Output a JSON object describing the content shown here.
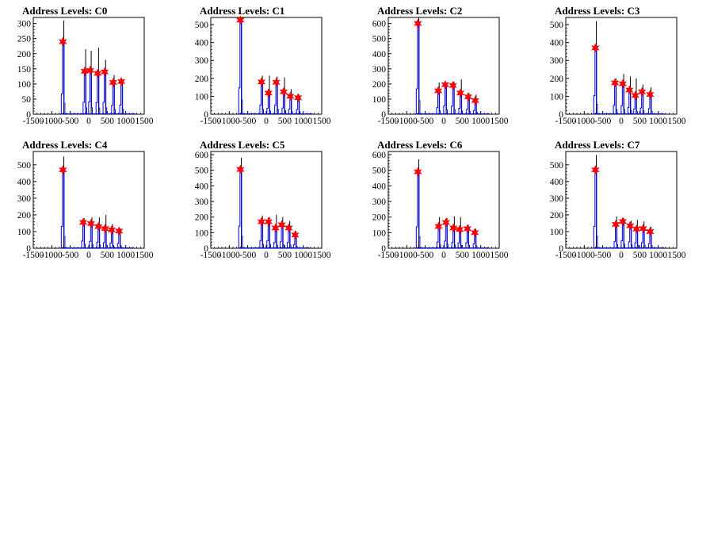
{
  "figure": {
    "background": "#ffffff",
    "line_color": "#0000ff",
    "outline_color": "#000000",
    "marker_color": "#ff0000"
  },
  "chart_data": [
    {
      "type": "histogram",
      "title": "Address Levels: C0",
      "xlim": [
        -1500,
        1500
      ],
      "ylim": [
        0,
        320
      ],
      "xticks": [
        -1500,
        -1000,
        -500,
        0,
        500,
        1000,
        1500
      ],
      "yticks": [
        0,
        50,
        100,
        150,
        200,
        250,
        300
      ],
      "peaks": [
        {
          "x": -700,
          "y": 240,
          "max": 310
        },
        {
          "x": -110,
          "y": 142,
          "max": 215
        },
        {
          "x": 40,
          "y": 145,
          "max": 210
        },
        {
          "x": 240,
          "y": 135,
          "max": 220
        },
        {
          "x": 430,
          "y": 140,
          "max": 180
        },
        {
          "x": 660,
          "y": 105,
          "max": 130
        },
        {
          "x": 880,
          "y": 108,
          "max": 115
        }
      ]
    },
    {
      "type": "histogram",
      "title": "Address Levels: C1",
      "xlim": [
        -1500,
        1500
      ],
      "ylim": [
        0,
        540
      ],
      "xticks": [
        -1500,
        -1000,
        -500,
        0,
        500,
        1000,
        1500
      ],
      "yticks": [
        0,
        100,
        200,
        300,
        400,
        500
      ],
      "peaks": [
        {
          "x": -700,
          "y": 525,
          "max": 540
        },
        {
          "x": -130,
          "y": 180,
          "max": 215
        },
        {
          "x": 60,
          "y": 118,
          "max": 215
        },
        {
          "x": 270,
          "y": 178,
          "max": 210
        },
        {
          "x": 470,
          "y": 125,
          "max": 205
        },
        {
          "x": 650,
          "y": 100,
          "max": 140
        },
        {
          "x": 860,
          "y": 92,
          "max": 110
        }
      ]
    },
    {
      "type": "histogram",
      "title": "Address Levels: C2",
      "xlim": [
        -1500,
        1500
      ],
      "ylim": [
        0,
        640
      ],
      "xticks": [
        -1500,
        -1000,
        -500,
        0,
        500,
        1000,
        1500
      ],
      "yticks": [
        0,
        100,
        200,
        300,
        400,
        500,
        600
      ],
      "peaks": [
        {
          "x": -700,
          "y": 600,
          "max": 640
        },
        {
          "x": -150,
          "y": 155,
          "max": 210
        },
        {
          "x": 40,
          "y": 195,
          "max": 205
        },
        {
          "x": 250,
          "y": 190,
          "max": 215
        },
        {
          "x": 450,
          "y": 140,
          "max": 230
        },
        {
          "x": 660,
          "y": 115,
          "max": 140
        },
        {
          "x": 850,
          "y": 90,
          "max": 130
        }
      ]
    },
    {
      "type": "histogram",
      "title": "Address Levels: C3",
      "xlim": [
        -1500,
        1500
      ],
      "ylim": [
        0,
        540
      ],
      "xticks": [
        -1500,
        -1000,
        -500,
        0,
        500,
        1000,
        1500
      ],
      "yticks": [
        0,
        100,
        200,
        300,
        400,
        500
      ],
      "peaks": [
        {
          "x": -700,
          "y": 370,
          "max": 520
        },
        {
          "x": -170,
          "y": 175,
          "max": 200
        },
        {
          "x": 40,
          "y": 170,
          "max": 225
        },
        {
          "x": 220,
          "y": 135,
          "max": 210
        },
        {
          "x": 380,
          "y": 105,
          "max": 200
        },
        {
          "x": 560,
          "y": 125,
          "max": 165
        },
        {
          "x": 780,
          "y": 110,
          "max": 150
        }
      ]
    },
    {
      "type": "histogram",
      "title": "Address Levels: C4",
      "xlim": [
        -1500,
        1500
      ],
      "ylim": [
        0,
        580
      ],
      "xticks": [
        -1500,
        -1000,
        -500,
        0,
        500,
        1000,
        1500
      ],
      "yticks": [
        0,
        100,
        200,
        300,
        400,
        500
      ],
      "peaks": [
        {
          "x": -700,
          "y": 470,
          "max": 550
        },
        {
          "x": -150,
          "y": 155,
          "max": 180
        },
        {
          "x": 60,
          "y": 148,
          "max": 185
        },
        {
          "x": 260,
          "y": 130,
          "max": 185
        },
        {
          "x": 440,
          "y": 118,
          "max": 200
        },
        {
          "x": 620,
          "y": 110,
          "max": 145
        },
        {
          "x": 820,
          "y": 103,
          "max": 120
        }
      ]
    },
    {
      "type": "histogram",
      "title": "Address Levels: C5",
      "xlim": [
        -1500,
        1500
      ],
      "ylim": [
        0,
        620
      ],
      "xticks": [
        -1500,
        -1000,
        -500,
        0,
        500,
        1000,
        1500
      ],
      "yticks": [
        0,
        100,
        200,
        300,
        400,
        500,
        600
      ],
      "peaks": [
        {
          "x": -700,
          "y": 505,
          "max": 580
        },
        {
          "x": -130,
          "y": 170,
          "max": 210
        },
        {
          "x": 60,
          "y": 170,
          "max": 200
        },
        {
          "x": 250,
          "y": 130,
          "max": 215
        },
        {
          "x": 420,
          "y": 150,
          "max": 200
        },
        {
          "x": 610,
          "y": 130,
          "max": 175
        },
        {
          "x": 780,
          "y": 85,
          "max": 110
        }
      ]
    },
    {
      "type": "histogram",
      "title": "Address Levels: C6",
      "xlim": [
        -1500,
        1500
      ],
      "ylim": [
        0,
        620
      ],
      "xticks": [
        -1500,
        -1000,
        -500,
        0,
        500,
        1000,
        1500
      ],
      "yticks": [
        0,
        100,
        200,
        300,
        400,
        500,
        600
      ],
      "peaks": [
        {
          "x": -700,
          "y": 490,
          "max": 570
        },
        {
          "x": -140,
          "y": 140,
          "max": 200
        },
        {
          "x": 60,
          "y": 165,
          "max": 195
        },
        {
          "x": 260,
          "y": 130,
          "max": 205
        },
        {
          "x": 430,
          "y": 120,
          "max": 200
        },
        {
          "x": 640,
          "y": 125,
          "max": 150
        },
        {
          "x": 840,
          "y": 100,
          "max": 125
        }
      ]
    },
    {
      "type": "histogram",
      "title": "Address Levels: C7",
      "xlim": [
        -1500,
        1500
      ],
      "ylim": [
        0,
        580
      ],
      "xticks": [
        -1500,
        -1000,
        -500,
        0,
        500,
        1000,
        1500
      ],
      "yticks": [
        0,
        100,
        200,
        300,
        400,
        500
      ],
      "peaks": [
        {
          "x": -700,
          "y": 470,
          "max": 560
        },
        {
          "x": -150,
          "y": 143,
          "max": 190
        },
        {
          "x": 40,
          "y": 160,
          "max": 180
        },
        {
          "x": 240,
          "y": 135,
          "max": 165
        },
        {
          "x": 410,
          "y": 115,
          "max": 170
        },
        {
          "x": 590,
          "y": 118,
          "max": 160
        },
        {
          "x": 780,
          "y": 100,
          "max": 130
        }
      ]
    }
  ]
}
